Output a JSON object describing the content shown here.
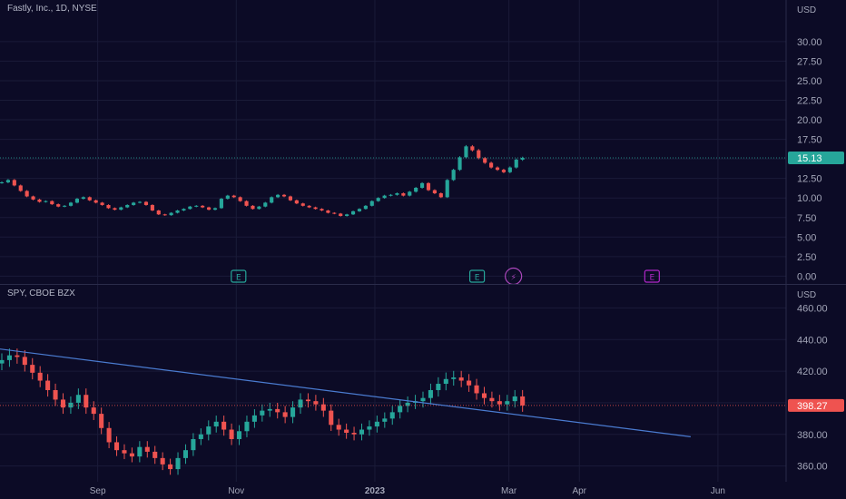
{
  "chart_data": [
    {
      "type": "candlestick",
      "title": "Fastly, Inc., 1D, NYSE",
      "currency": "USD",
      "last_price": "15.13",
      "last_price_color": "#26a69a",
      "ylim": [
        -1,
        33
      ],
      "y_ticks": [
        "0.00",
        "2.50",
        "5.00",
        "7.50",
        "10.00",
        "12.50",
        "15.00",
        "17.50",
        "20.00",
        "22.50",
        "25.00",
        "27.50",
        "30.00"
      ],
      "close_series": [
        12.0,
        12.3,
        11.6,
        10.9,
        10.2,
        9.8,
        9.5,
        9.6,
        9.2,
        8.9,
        9.0,
        9.4,
        9.9,
        10.1,
        9.7,
        9.4,
        9.1,
        8.7,
        8.5,
        8.8,
        9.1,
        9.4,
        9.5,
        9.1,
        8.4,
        7.9,
        7.8,
        8.1,
        8.4,
        8.6,
        8.9,
        9.0,
        8.8,
        8.5,
        8.7,
        9.9,
        10.3,
        10.1,
        9.6,
        9.0,
        8.6,
        8.9,
        9.4,
        10.1,
        10.4,
        10.2,
        9.7,
        9.3,
        9.0,
        8.8,
        8.6,
        8.4,
        8.1,
        8.0,
        7.7,
        7.9,
        8.3,
        8.6,
        9.0,
        9.6,
        10.0,
        10.3,
        10.4,
        10.6,
        10.3,
        10.8,
        11.3,
        11.9,
        11.0,
        10.6,
        10.1,
        12.3,
        13.6,
        15.2,
        16.6,
        16.1,
        15.1,
        14.5,
        13.9,
        13.6,
        13.3,
        13.9,
        14.9,
        15.13
      ],
      "events": [
        {
          "label": "E",
          "date": "2022-11-02",
          "color": "#26a69a"
        },
        {
          "label": "E",
          "date": "2023-02-15",
          "color": "#26a69a"
        },
        {
          "label": "⚡",
          "date": "2023-03-03",
          "color": "#ab47bc"
        },
        {
          "label": "E",
          "date": "2023-05-03",
          "color": "#b026c8"
        }
      ]
    },
    {
      "type": "candlestick",
      "title": "SPY, CBOE BZX",
      "currency": "USD",
      "last_price": "398.27",
      "last_price_color": "#ef5350",
      "ylim": [
        350,
        470
      ],
      "y_ticks": [
        "360.00",
        "380.00",
        "400.00",
        "420.00",
        "440.00",
        "460.00"
      ],
      "close_series": [
        427,
        430,
        429,
        424,
        419,
        414,
        408,
        402,
        397,
        400,
        405,
        397,
        393,
        384,
        375,
        370,
        368,
        366,
        372,
        369,
        365,
        361,
        358,
        365,
        370,
        377,
        380,
        385,
        388,
        383,
        377,
        382,
        388,
        392,
        395,
        396,
        394,
        391,
        397,
        402,
        401,
        399,
        395,
        386,
        383,
        381,
        380,
        383,
        385,
        388,
        390,
        394,
        398,
        400,
        401,
        403,
        408,
        412,
        415,
        416,
        414,
        411,
        406,
        403,
        401,
        399,
        401,
        404,
        398.27
      ],
      "trendline": {
        "start": [
          "2022-07-20",
          434.0
        ],
        "end": [
          "2023-05-20",
          378.5
        ],
        "color": "#4a7bd0"
      }
    }
  ],
  "time_axis": {
    "labels": [
      {
        "text": "Sep",
        "date": "2022-09-01",
        "bold": false
      },
      {
        "text": "Nov",
        "date": "2022-11-01",
        "bold": false
      },
      {
        "text": "2023",
        "date": "2023-01-01",
        "bold": true
      },
      {
        "text": "Mar",
        "date": "2023-03-01",
        "bold": false
      },
      {
        "text": "Apr",
        "date": "2023-04-01",
        "bold": false
      },
      {
        "text": "Jun",
        "date": "2023-06-01",
        "bold": false
      }
    ]
  },
  "colors": {
    "background": "#0c0b26",
    "grid": "#1a1b38",
    "up": "#26a69a",
    "down": "#ef5350",
    "text": "#a3a6b8"
  }
}
